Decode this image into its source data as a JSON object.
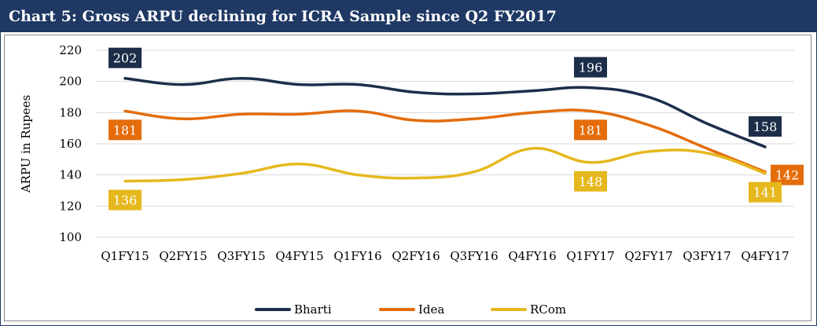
{
  "title": "Chart 5: Gross ARPU declining for ICRA Sample since Q2 FY2017",
  "colors": {
    "title_bg": "#1f3864",
    "Bharti": "#1c2e4a",
    "Idea": "#e46c0a",
    "RCom": "#e6b81e"
  },
  "chart_data": {
    "type": "line",
    "title": "Chart 5: Gross ARPU declining for ICRA Sample since Q2 FY2017",
    "xlabel": "",
    "ylabel": "ARPU in Rupees",
    "ylim": [
      100,
      220
    ],
    "yticks": [
      100,
      120,
      140,
      160,
      180,
      200,
      220
    ],
    "grid": "horizontal",
    "legend_position": "bottom",
    "categories": [
      "Q1FY15",
      "Q2FY15",
      "Q3FY15",
      "Q4FY15",
      "Q1FY16",
      "Q2FY16",
      "Q3FY16",
      "Q4FY16",
      "Q1FY17",
      "Q2FY17",
      "Q3FY17",
      "Q4FY17"
    ],
    "series": [
      {
        "name": "Bharti",
        "values": [
          202,
          198,
          202,
          198,
          198,
          193,
          192,
          194,
          196,
          190,
          173,
          158
        ]
      },
      {
        "name": "Idea",
        "values": [
          181,
          176,
          179,
          179,
          181,
          175,
          176,
          180,
          181,
          172,
          157,
          142
        ]
      },
      {
        "name": "RCom",
        "values": [
          136,
          137,
          141,
          147,
          140,
          138,
          142,
          157,
          148,
          155,
          154,
          141
        ]
      }
    ],
    "data_labels": [
      {
        "series": "Bharti",
        "category": "Q1FY15",
        "text": "202",
        "placement": "above"
      },
      {
        "series": "Bharti",
        "category": "Q1FY17",
        "text": "196",
        "placement": "above"
      },
      {
        "series": "Bharti",
        "category": "Q4FY17",
        "text": "158",
        "placement": "above"
      },
      {
        "series": "Idea",
        "category": "Q1FY15",
        "text": "181",
        "placement": "below"
      },
      {
        "series": "Idea",
        "category": "Q1FY17",
        "text": "181",
        "placement": "below"
      },
      {
        "series": "Idea",
        "category": "Q4FY17",
        "text": "142",
        "placement": "right"
      },
      {
        "series": "RCom",
        "category": "Q1FY15",
        "text": "136",
        "placement": "below"
      },
      {
        "series": "RCom",
        "category": "Q1FY17",
        "text": "148",
        "placement": "below"
      },
      {
        "series": "RCom",
        "category": "Q4FY17",
        "text": "141",
        "placement": "below"
      }
    ]
  }
}
